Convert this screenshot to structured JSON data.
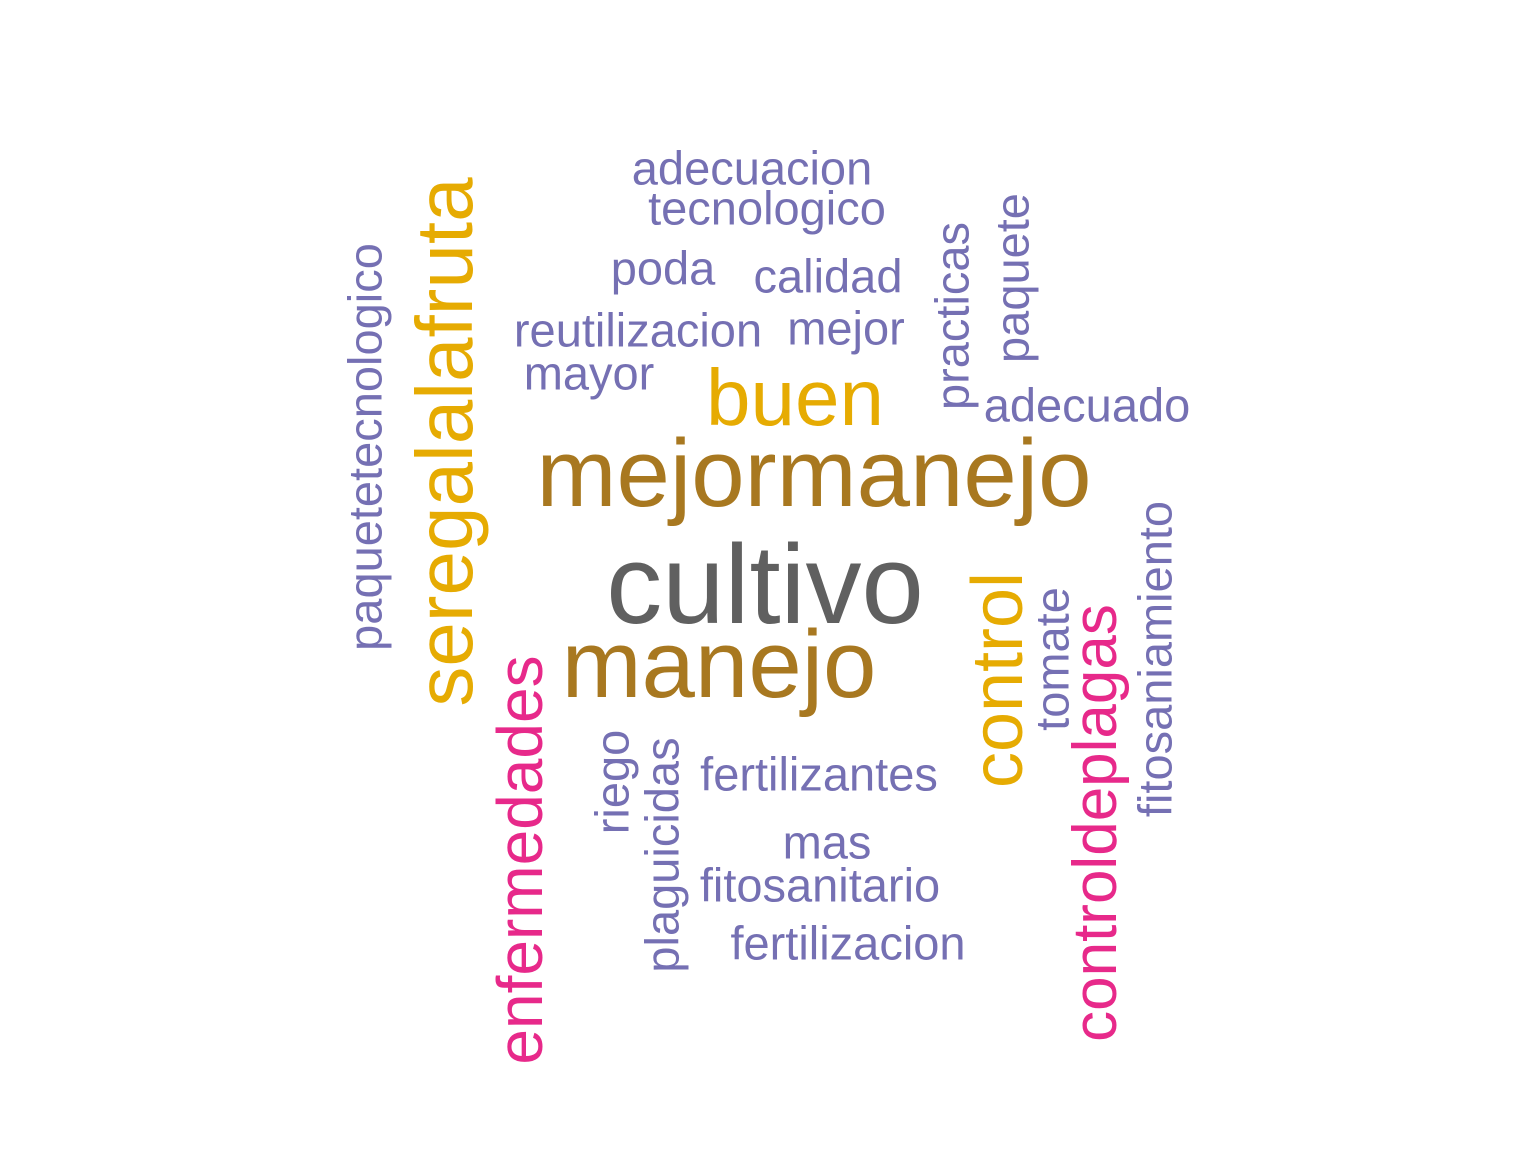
{
  "colors": {
    "background": "#ffffff",
    "grey": "#606060",
    "brown": "#A87820",
    "gold": "#E6AB02",
    "pink": "#E7298A",
    "purple": "#7570B3"
  },
  "words": {
    "cultivo": "cultivo",
    "mejormanejo": "mejormanejo",
    "manejo": "manejo",
    "buen": "buen",
    "seregalalafruta": "seregalalafruta",
    "control": "control",
    "enfermedades": "enfermedades",
    "controldeplagas": "controldeplagas",
    "paquetetecnologico": "paquetetecnologico",
    "adecuacion": "adecuacion",
    "tecnologico": "tecnologico",
    "poda": "poda",
    "calidad": "calidad",
    "reutilizacion": "reutilizacion",
    "mejor": "mejor",
    "mayor": "mayor",
    "practicas": "practicas",
    "paquete": "paquete",
    "adecuado": "adecuado",
    "fitosaniamiento": "fitosaniamiento",
    "tomate": "tomate",
    "riego": "riego",
    "plaguicidas": "plaguicidas",
    "fertilizantes": "fertilizantes",
    "mas": "mas",
    "fitosanitario": "fitosanitario",
    "fertilizacion": "fertilizacion"
  }
}
